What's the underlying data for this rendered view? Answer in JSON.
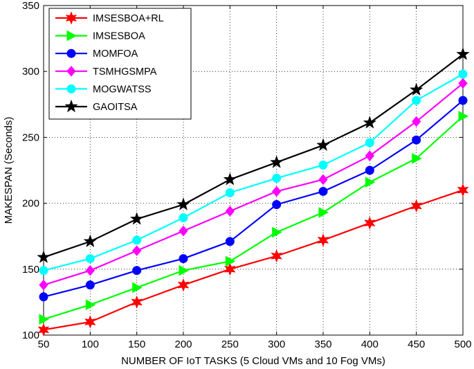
{
  "chart_data": {
    "type": "line",
    "title": "",
    "xlabel": "NUMBER OF IoT TASKS (5 Cloud VMs and 10 Fog VMs)",
    "ylabel": "MAKESPAN (Seconds)",
    "x": [
      50,
      100,
      150,
      200,
      250,
      300,
      350,
      400,
      450,
      500
    ],
    "xlim": [
      50,
      500
    ],
    "ylim": [
      100,
      350
    ],
    "xticks": [
      "50",
      "100",
      "150",
      "200",
      "250",
      "300",
      "350",
      "400",
      "450",
      "500"
    ],
    "yticks": [
      "100",
      "150",
      "200",
      "250",
      "300",
      "350"
    ],
    "grid": true,
    "legend_position": "top-left",
    "series": [
      {
        "name": "IMSESBOA+RL",
        "color": "#ff0000",
        "marker": "hexagram",
        "values": [
          104,
          110,
          125,
          138,
          150,
          160,
          172,
          185,
          198,
          210
        ]
      },
      {
        "name": "IMSESBOA",
        "color": "#00ff00",
        "marker": "triangle-right",
        "values": [
          112,
          123,
          136,
          149,
          156,
          178,
          193,
          216,
          234,
          266
        ]
      },
      {
        "name": "MOMFOA",
        "color": "#0000ff",
        "marker": "circle",
        "values": [
          129,
          138,
          149,
          158,
          171,
          199,
          209,
          225,
          248,
          278
        ]
      },
      {
        "name": "TSMHGSMPA",
        "color": "#ff00ff",
        "marker": "diamond",
        "values": [
          138,
          149,
          164,
          179,
          194,
          209,
          218,
          236,
          262,
          291
        ]
      },
      {
        "name": "MOGWATSS",
        "color": "#00ffff",
        "marker": "circle",
        "values": [
          149,
          158,
          172,
          189,
          208,
          219,
          229,
          246,
          278,
          298
        ]
      },
      {
        "name": "GAOITSA",
        "color": "#000000",
        "marker": "star",
        "values": [
          159,
          171,
          188,
          199,
          218,
          231,
          244,
          261,
          286,
          313
        ]
      }
    ]
  }
}
